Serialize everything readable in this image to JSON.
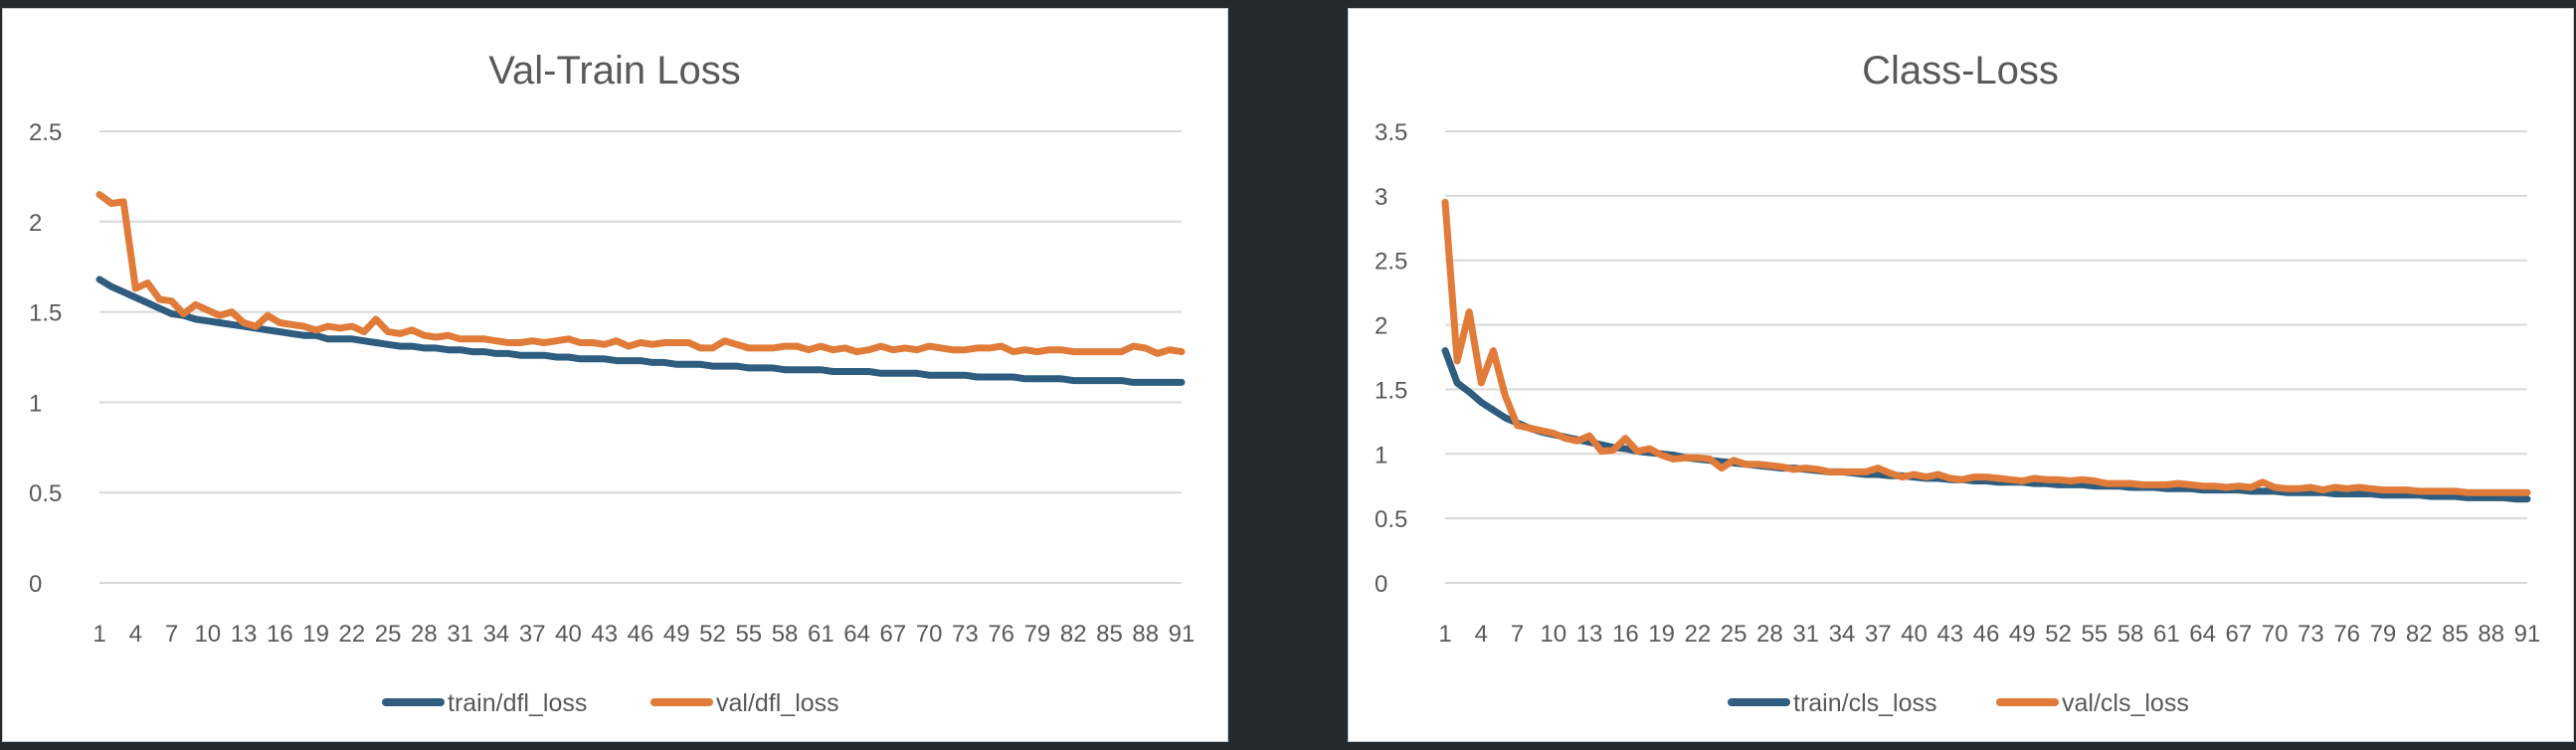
{
  "chart_data": [
    {
      "type": "line",
      "title": "Val-Train Loss",
      "xlabel": "",
      "ylabel": "",
      "x_start": 1,
      "x_end": 91,
      "x_tick_labels": [
        "1",
        "4",
        "7",
        "10",
        "13",
        "16",
        "19",
        "22",
        "25",
        "28",
        "31",
        "34",
        "37",
        "40",
        "43",
        "46",
        "49",
        "52",
        "55",
        "58",
        "61",
        "64",
        "67",
        "70",
        "73",
        "76",
        "79",
        "82",
        "85",
        "88",
        "91"
      ],
      "ylim": [
        0,
        2.5
      ],
      "y_ticks": [
        "0",
        "0.5",
        "1",
        "1.5",
        "2",
        "2.5"
      ],
      "grid": true,
      "legend_position": "bottom",
      "series": [
        {
          "name": "train/dfl_loss",
          "color": "#2e5d7f",
          "values": [
            1.68,
            1.64,
            1.61,
            1.58,
            1.55,
            1.52,
            1.49,
            1.48,
            1.46,
            1.45,
            1.44,
            1.43,
            1.42,
            1.41,
            1.4,
            1.39,
            1.38,
            1.37,
            1.37,
            1.35,
            1.35,
            1.35,
            1.34,
            1.33,
            1.32,
            1.31,
            1.31,
            1.3,
            1.3,
            1.29,
            1.29,
            1.28,
            1.28,
            1.27,
            1.27,
            1.26,
            1.26,
            1.26,
            1.25,
            1.25,
            1.24,
            1.24,
            1.24,
            1.23,
            1.23,
            1.23,
            1.22,
            1.22,
            1.21,
            1.21,
            1.21,
            1.2,
            1.2,
            1.2,
            1.19,
            1.19,
            1.19,
            1.18,
            1.18,
            1.18,
            1.18,
            1.17,
            1.17,
            1.17,
            1.17,
            1.16,
            1.16,
            1.16,
            1.16,
            1.15,
            1.15,
            1.15,
            1.15,
            1.14,
            1.14,
            1.14,
            1.14,
            1.13,
            1.13,
            1.13,
            1.13,
            1.12,
            1.12,
            1.12,
            1.12,
            1.12,
            1.11,
            1.11,
            1.11,
            1.11,
            1.11
          ]
        },
        {
          "name": "val/dfl_loss",
          "color": "#e07b39",
          "values": [
            2.15,
            2.1,
            2.11,
            1.63,
            1.66,
            1.57,
            1.56,
            1.49,
            1.54,
            1.51,
            1.48,
            1.5,
            1.44,
            1.42,
            1.48,
            1.44,
            1.43,
            1.42,
            1.4,
            1.42,
            1.41,
            1.42,
            1.39,
            1.46,
            1.39,
            1.38,
            1.4,
            1.37,
            1.36,
            1.37,
            1.35,
            1.35,
            1.35,
            1.34,
            1.33,
            1.33,
            1.34,
            1.33,
            1.34,
            1.35,
            1.33,
            1.33,
            1.32,
            1.34,
            1.31,
            1.33,
            1.32,
            1.33,
            1.33,
            1.33,
            1.3,
            1.3,
            1.34,
            1.32,
            1.3,
            1.3,
            1.3,
            1.31,
            1.31,
            1.29,
            1.31,
            1.29,
            1.3,
            1.28,
            1.29,
            1.31,
            1.29,
            1.3,
            1.29,
            1.31,
            1.3,
            1.29,
            1.29,
            1.3,
            1.3,
            1.31,
            1.28,
            1.29,
            1.28,
            1.29,
            1.29,
            1.28,
            1.28,
            1.28,
            1.28,
            1.28,
            1.31,
            1.3,
            1.27,
            1.29,
            1.28
          ]
        }
      ]
    },
    {
      "type": "line",
      "title": "Class-Loss",
      "xlabel": "",
      "ylabel": "",
      "x_start": 1,
      "x_end": 91,
      "x_tick_labels": [
        "1",
        "4",
        "7",
        "10",
        "13",
        "16",
        "19",
        "22",
        "25",
        "28",
        "31",
        "34",
        "37",
        "40",
        "43",
        "46",
        "49",
        "52",
        "55",
        "58",
        "61",
        "64",
        "67",
        "70",
        "73",
        "76",
        "79",
        "82",
        "85",
        "88",
        "91"
      ],
      "ylim": [
        0,
        3.5
      ],
      "y_ticks": [
        "0",
        "0.5",
        "1",
        "1.5",
        "2",
        "2.5",
        "3",
        "3.5"
      ],
      "grid": true,
      "legend_position": "bottom",
      "series": [
        {
          "name": "train/cls_loss",
          "color": "#2e5d7f",
          "values": [
            1.8,
            1.55,
            1.48,
            1.4,
            1.34,
            1.28,
            1.24,
            1.2,
            1.17,
            1.15,
            1.13,
            1.11,
            1.09,
            1.07,
            1.05,
            1.04,
            1.02,
            1.01,
            1.0,
            0.99,
            0.97,
            0.96,
            0.95,
            0.94,
            0.93,
            0.92,
            0.91,
            0.9,
            0.89,
            0.89,
            0.88,
            0.87,
            0.86,
            0.86,
            0.85,
            0.84,
            0.84,
            0.83,
            0.83,
            0.82,
            0.81,
            0.81,
            0.8,
            0.8,
            0.79,
            0.79,
            0.78,
            0.78,
            0.78,
            0.77,
            0.77,
            0.76,
            0.76,
            0.76,
            0.75,
            0.75,
            0.75,
            0.74,
            0.74,
            0.74,
            0.73,
            0.73,
            0.73,
            0.72,
            0.72,
            0.72,
            0.72,
            0.71,
            0.71,
            0.71,
            0.7,
            0.7,
            0.7,
            0.7,
            0.69,
            0.69,
            0.69,
            0.69,
            0.68,
            0.68,
            0.68,
            0.68,
            0.67,
            0.67,
            0.67,
            0.66,
            0.66,
            0.66,
            0.66,
            0.65,
            0.65
          ]
        },
        {
          "name": "val/cls_loss",
          "color": "#e07b39",
          "values": [
            2.95,
            1.72,
            2.1,
            1.55,
            1.8,
            1.45,
            1.22,
            1.2,
            1.18,
            1.16,
            1.12,
            1.1,
            1.14,
            1.02,
            1.03,
            1.12,
            1.02,
            1.04,
            0.99,
            0.96,
            0.97,
            0.97,
            0.96,
            0.89,
            0.95,
            0.92,
            0.92,
            0.91,
            0.9,
            0.88,
            0.89,
            0.88,
            0.86,
            0.86,
            0.86,
            0.86,
            0.89,
            0.85,
            0.82,
            0.84,
            0.82,
            0.84,
            0.81,
            0.8,
            0.82,
            0.82,
            0.81,
            0.8,
            0.79,
            0.81,
            0.8,
            0.8,
            0.79,
            0.8,
            0.79,
            0.77,
            0.77,
            0.77,
            0.76,
            0.76,
            0.76,
            0.77,
            0.76,
            0.75,
            0.75,
            0.74,
            0.75,
            0.74,
            0.78,
            0.74,
            0.73,
            0.73,
            0.74,
            0.72,
            0.74,
            0.73,
            0.74,
            0.73,
            0.72,
            0.72,
            0.72,
            0.71,
            0.71,
            0.71,
            0.71,
            0.7,
            0.7,
            0.7,
            0.7,
            0.7,
            0.7
          ]
        }
      ]
    }
  ]
}
